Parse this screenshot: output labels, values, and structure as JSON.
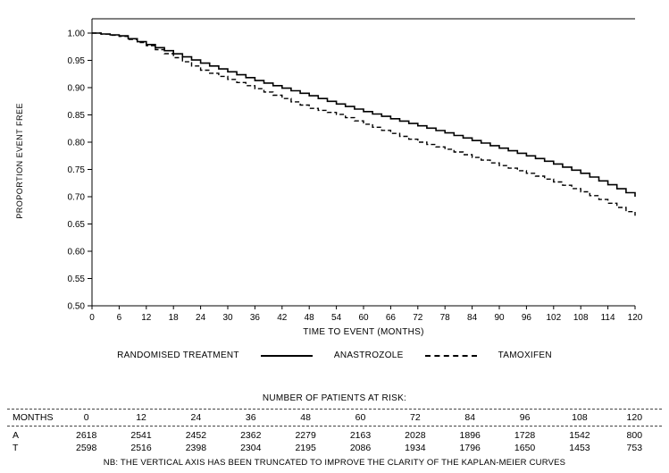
{
  "chart_data": {
    "type": "line",
    "subtype": "kaplan-meier-step",
    "title": "",
    "ylabel": "PROPORTION EVENT FREE",
    "xlabel": "TIME TO EVENT (MONTHS)",
    "ylim": [
      0.5,
      1.0
    ],
    "xlim": [
      0,
      120
    ],
    "yticks": [
      1.0,
      0.95,
      0.9,
      0.85,
      0.8,
      0.75,
      0.7,
      0.65,
      0.6,
      0.55,
      0.5
    ],
    "xticks": [
      0,
      6,
      12,
      18,
      24,
      30,
      36,
      42,
      48,
      54,
      60,
      66,
      72,
      78,
      84,
      90,
      96,
      102,
      108,
      114,
      120
    ],
    "grid": false,
    "legend_title": "RANDOMISED TREATMENT",
    "legend_position": "bottom",
    "line_color": "#000000",
    "series": [
      {
        "name": "ANASTROZOLE",
        "style": "solid",
        "x": [
          0,
          6,
          12,
          18,
          24,
          30,
          36,
          42,
          48,
          54,
          60,
          66,
          72,
          78,
          84,
          90,
          96,
          102,
          108,
          114,
          120
        ],
        "y": [
          1.0,
          0.995,
          0.979,
          0.962,
          0.945,
          0.929,
          0.913,
          0.899,
          0.885,
          0.87,
          0.856,
          0.843,
          0.83,
          0.817,
          0.803,
          0.789,
          0.775,
          0.76,
          0.743,
          0.722,
          0.7
        ]
      },
      {
        "name": "TAMOXIFEN",
        "style": "dashed",
        "x": [
          0,
          6,
          12,
          18,
          24,
          30,
          36,
          42,
          48,
          54,
          60,
          66,
          72,
          78,
          84,
          90,
          96,
          102,
          108,
          114,
          120
        ],
        "y": [
          1.0,
          0.994,
          0.977,
          0.955,
          0.932,
          0.915,
          0.898,
          0.88,
          0.862,
          0.851,
          0.833,
          0.816,
          0.8,
          0.787,
          0.772,
          0.757,
          0.743,
          0.727,
          0.709,
          0.688,
          0.665
        ]
      }
    ]
  },
  "risk_table": {
    "title": "NUMBER OF PATIENTS AT RISK:",
    "months_label": "MONTHS",
    "months": [
      0,
      12,
      24,
      36,
      48,
      60,
      72,
      84,
      96,
      108,
      120
    ],
    "rows": [
      {
        "label": "A",
        "values": [
          2618,
          2541,
          2452,
          2362,
          2279,
          2163,
          2028,
          1896,
          1728,
          1542,
          800
        ]
      },
      {
        "label": "T",
        "values": [
          2598,
          2516,
          2398,
          2304,
          2195,
          2086,
          1934,
          1796,
          1650,
          1453,
          753
        ]
      }
    ]
  },
  "note": "NB: THE VERTICAL AXIS HAS BEEN TRUNCATED TO IMPROVE THE CLARITY OF THE KAPLAN-MEIER CURVES"
}
